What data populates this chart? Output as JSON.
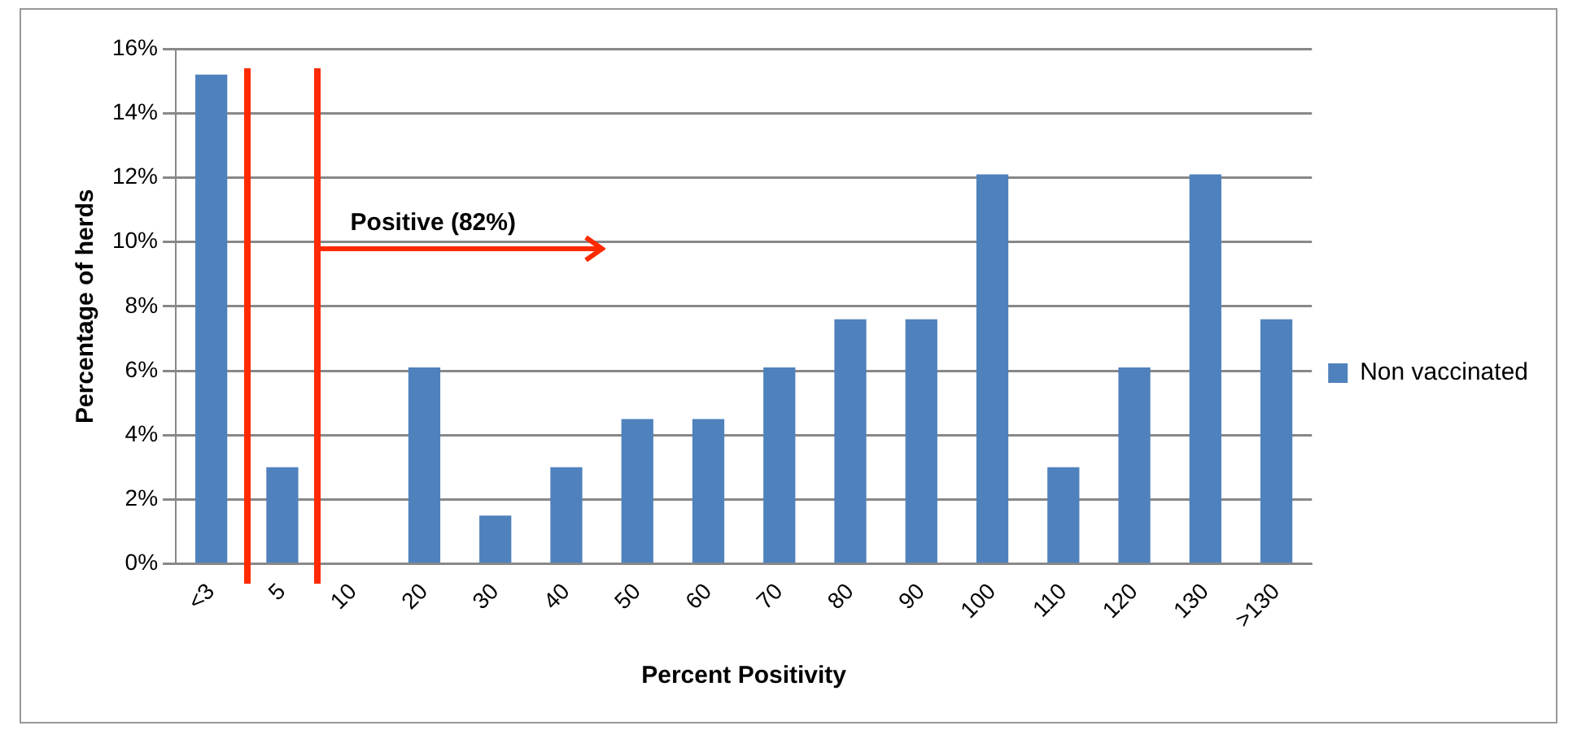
{
  "chart_data": {
    "type": "bar",
    "xlabel": "Percent Positivity",
    "ylabel": "Percentage of herds",
    "categories": [
      "<3",
      "5",
      "10",
      "20",
      "30",
      "40",
      "50",
      "60",
      "70",
      "80",
      "90",
      "100",
      "110",
      "120",
      "130",
      ">130"
    ],
    "series": [
      {
        "name": "Non vaccinated",
        "color": "#4f81bd",
        "values": [
          15.2,
          3.0,
          0,
          6.1,
          1.5,
          3.0,
          4.5,
          4.5,
          6.1,
          7.6,
          7.6,
          12.1,
          3.0,
          6.1,
          12.1,
          7.6
        ]
      }
    ],
    "ylim": [
      0,
      16
    ],
    "yticks": [
      {
        "value": 0,
        "label": "0%"
      },
      {
        "value": 2,
        "label": "2%"
      },
      {
        "value": 4,
        "label": "4%"
      },
      {
        "value": 6,
        "label": "6%"
      },
      {
        "value": 8,
        "label": "8%"
      },
      {
        "value": 10,
        "label": "10%"
      },
      {
        "value": 12,
        "label": "12%"
      },
      {
        "value": 14,
        "label": "14%"
      },
      {
        "value": 16,
        "label": "16%"
      }
    ],
    "grid": "y",
    "legend": "right",
    "annotations": [
      "Positive (82%)"
    ]
  }
}
